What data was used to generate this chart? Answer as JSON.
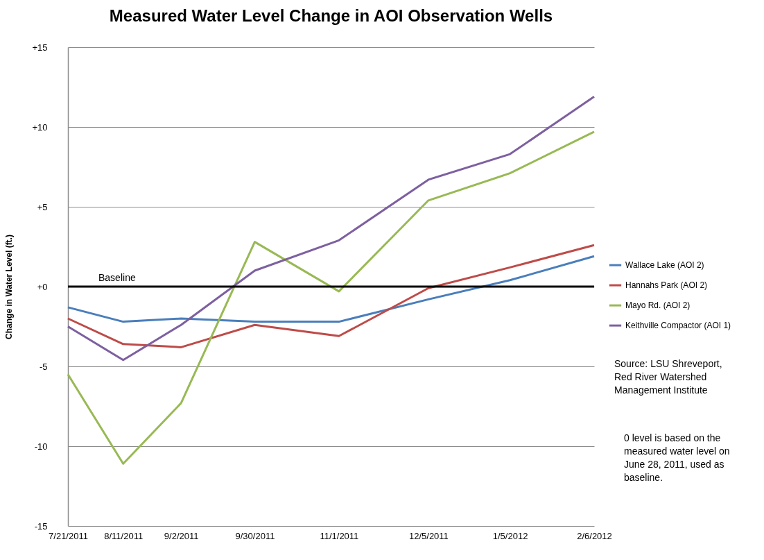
{
  "chart_data": {
    "type": "line",
    "title": "Measured Water Level Change in AOI Observation Wells",
    "ylabel": "Change in Water Level (ft.)",
    "x": [
      "2011-07-21",
      "2011-08-11",
      "2011-09-02",
      "2011-09-30",
      "2011-11-01",
      "2011-12-05",
      "2012-01-05",
      "2012-02-06"
    ],
    "xlim": [
      "2011-07-21",
      "2012-02-06"
    ],
    "xticks": [
      {
        "value": "2011-07-21",
        "label": "7/21/2011"
      },
      {
        "value": "2011-08-11",
        "label": "8/11/2011"
      },
      {
        "value": "2011-09-02",
        "label": "9/2/2011"
      },
      {
        "value": "2011-09-30",
        "label": "9/30/2011"
      },
      {
        "value": "2011-11-01",
        "label": "11/1/2011"
      },
      {
        "value": "2011-12-05",
        "label": "12/5/2011"
      },
      {
        "value": "2012-01-05",
        "label": "1/5/2012"
      },
      {
        "value": "2012-02-06",
        "label": "2/6/2012"
      }
    ],
    "ylim": [
      -15,
      15
    ],
    "yticks": [
      {
        "value": -15,
        "label": "-15"
      },
      {
        "value": -10,
        "label": "-10"
      },
      {
        "value": -5,
        "label": "-5"
      },
      {
        "value": 0,
        "label": "+0"
      },
      {
        "value": 5,
        "label": "+5"
      },
      {
        "value": 10,
        "label": "+10"
      },
      {
        "value": 15,
        "label": "+15"
      }
    ],
    "grid": "y",
    "legend": "right",
    "series": [
      {
        "name": "Wallace Lake (AOI 2)",
        "color": "#4a7ebb",
        "values": [
          -1.3,
          -2.2,
          -2.0,
          -2.2,
          -2.2,
          -0.8,
          0.4,
          1.9
        ]
      },
      {
        "name": "Hannahs Park (AOI 2)",
        "color": "#be4b48",
        "values": [
          -2.0,
          -3.6,
          -3.8,
          -2.4,
          -3.1,
          -0.1,
          1.2,
          2.6
        ]
      },
      {
        "name": "Mayo Rd. (AOI 2)",
        "color": "#98b954",
        "values": [
          -5.5,
          -11.1,
          -7.3,
          2.8,
          -0.3,
          5.4,
          7.1,
          9.7
        ]
      },
      {
        "name": "Keithville Compactor (AOI 1)",
        "color": "#7d60a0",
        "values": [
          -2.5,
          -4.6,
          -2.4,
          1.0,
          2.9,
          6.7,
          8.3,
          11.9
        ]
      }
    ],
    "ref_lines": [
      {
        "axis": "y",
        "value": 0,
        "label": "Baseline",
        "color": "#000000"
      }
    ],
    "annotations": [
      "Source: LSU Shreveport, Red River Watershed Management Institute",
      "0 level is based on the measured water level on June 28, 2011, used as baseline."
    ]
  }
}
